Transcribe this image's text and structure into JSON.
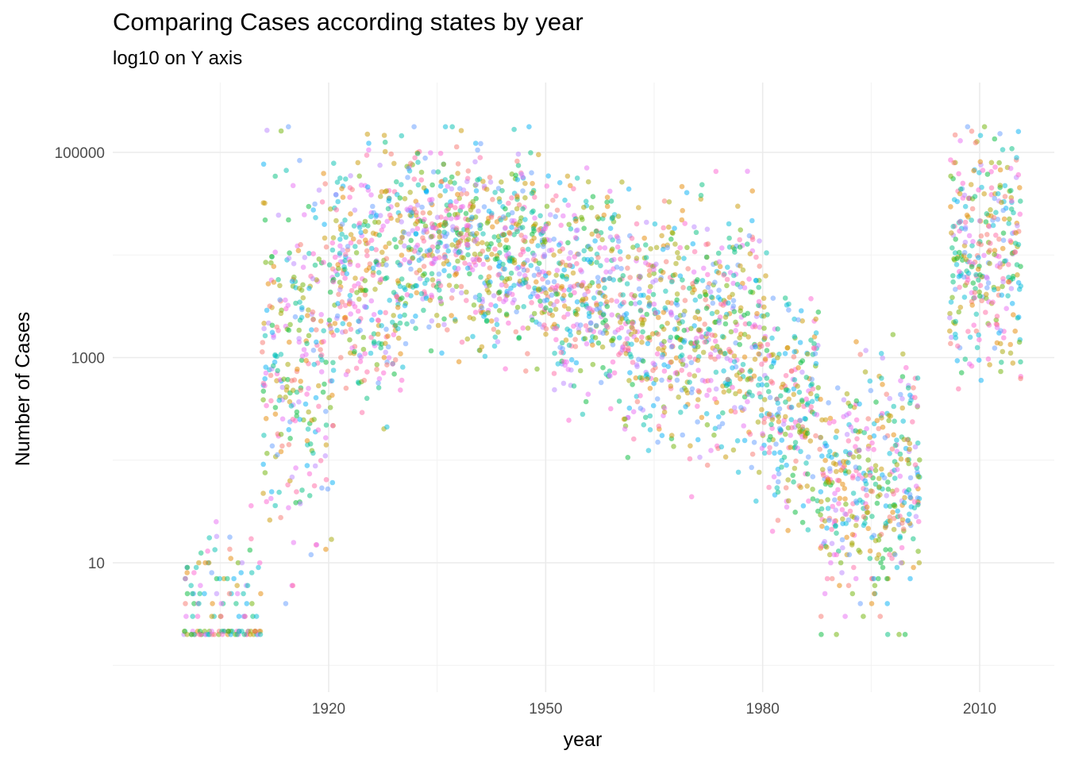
{
  "chart_data": {
    "type": "scatter",
    "title": "Comparing Cases according states by year",
    "subtitle": "log10 on Y axis",
    "xlabel": "year",
    "ylabel": "Number of Cases",
    "x_ticks": [
      1920,
      1950,
      1980,
      2010
    ],
    "y_ticks": [
      10,
      1000,
      100000
    ],
    "y_scale": "log10",
    "xlim": [
      1900,
      2015
    ],
    "ylim": [
      2,
      250000
    ],
    "grid": true,
    "legend": "none",
    "point_alpha": 0.5,
    "palette": [
      "#F8766D",
      "#E58700",
      "#C99800",
      "#A3A500",
      "#6BB100",
      "#00BA38",
      "#00BF7D",
      "#00C0AF",
      "#00BCD8",
      "#00B0F6",
      "#619CFF",
      "#B983FF",
      "#E76BF3",
      "#FD61D1",
      "#FF67A4"
    ],
    "point_groups": [
      {
        "years": [
          1900,
          1901,
          1902,
          1903,
          1904,
          1905,
          1906,
          1907,
          1908,
          1909,
          1910
        ],
        "log10_median": 0.5,
        "log10_spread": 0.45,
        "points_per_year": 12
      },
      {
        "years": [
          1911,
          1912,
          1913,
          1914,
          1915,
          1916,
          1917,
          1918,
          1919,
          1920
        ],
        "log10_median": 3.0,
        "log10_spread": 0.9,
        "points_per_year": 30
      },
      {
        "years": [
          1921,
          1922,
          1923,
          1924,
          1925,
          1926,
          1927,
          1928,
          1929,
          1930
        ],
        "log10_median": 3.8,
        "log10_spread": 0.6,
        "points_per_year": 32
      },
      {
        "years": [
          1931,
          1932,
          1933,
          1934,
          1935,
          1936,
          1937,
          1938,
          1939,
          1940
        ],
        "log10_median": 4.2,
        "log10_spread": 0.45,
        "points_per_year": 34
      },
      {
        "years": [
          1941,
          1942,
          1943,
          1944,
          1945,
          1946,
          1947,
          1948,
          1949,
          1950
        ],
        "log10_median": 4.0,
        "log10_spread": 0.45,
        "points_per_year": 34
      },
      {
        "years": [
          1951,
          1952,
          1953,
          1954,
          1955,
          1956,
          1957,
          1958,
          1959,
          1960
        ],
        "log10_median": 3.7,
        "log10_spread": 0.5,
        "points_per_year": 32
      },
      {
        "years": [
          1961,
          1962,
          1963,
          1964,
          1965,
          1966,
          1967,
          1968,
          1969,
          1970
        ],
        "log10_median": 3.3,
        "log10_spread": 0.55,
        "points_per_year": 32
      },
      {
        "years": [
          1971,
          1972,
          1973,
          1974,
          1975,
          1976,
          1977,
          1978,
          1979,
          1980
        ],
        "log10_median": 3.2,
        "log10_spread": 0.6,
        "points_per_year": 32
      },
      {
        "years": [
          1981,
          1982,
          1983,
          1984,
          1985,
          1986,
          1987
        ],
        "log10_median": 2.5,
        "log10_spread": 0.55,
        "points_per_year": 30
      },
      {
        "years": [
          1988,
          1989,
          1990,
          1991,
          1992,
          1993,
          1994,
          1995,
          1996,
          1997,
          1998,
          1999,
          2000,
          2001
        ],
        "log10_median": 1.8,
        "log10_spread": 0.6,
        "points_per_year": 30
      },
      {
        "years": [
          2006,
          2007,
          2008,
          2009,
          2010,
          2011,
          2012,
          2013,
          2014,
          2015
        ],
        "log10_median": 4.0,
        "log10_spread": 0.6,
        "points_per_year": 32
      }
    ]
  }
}
